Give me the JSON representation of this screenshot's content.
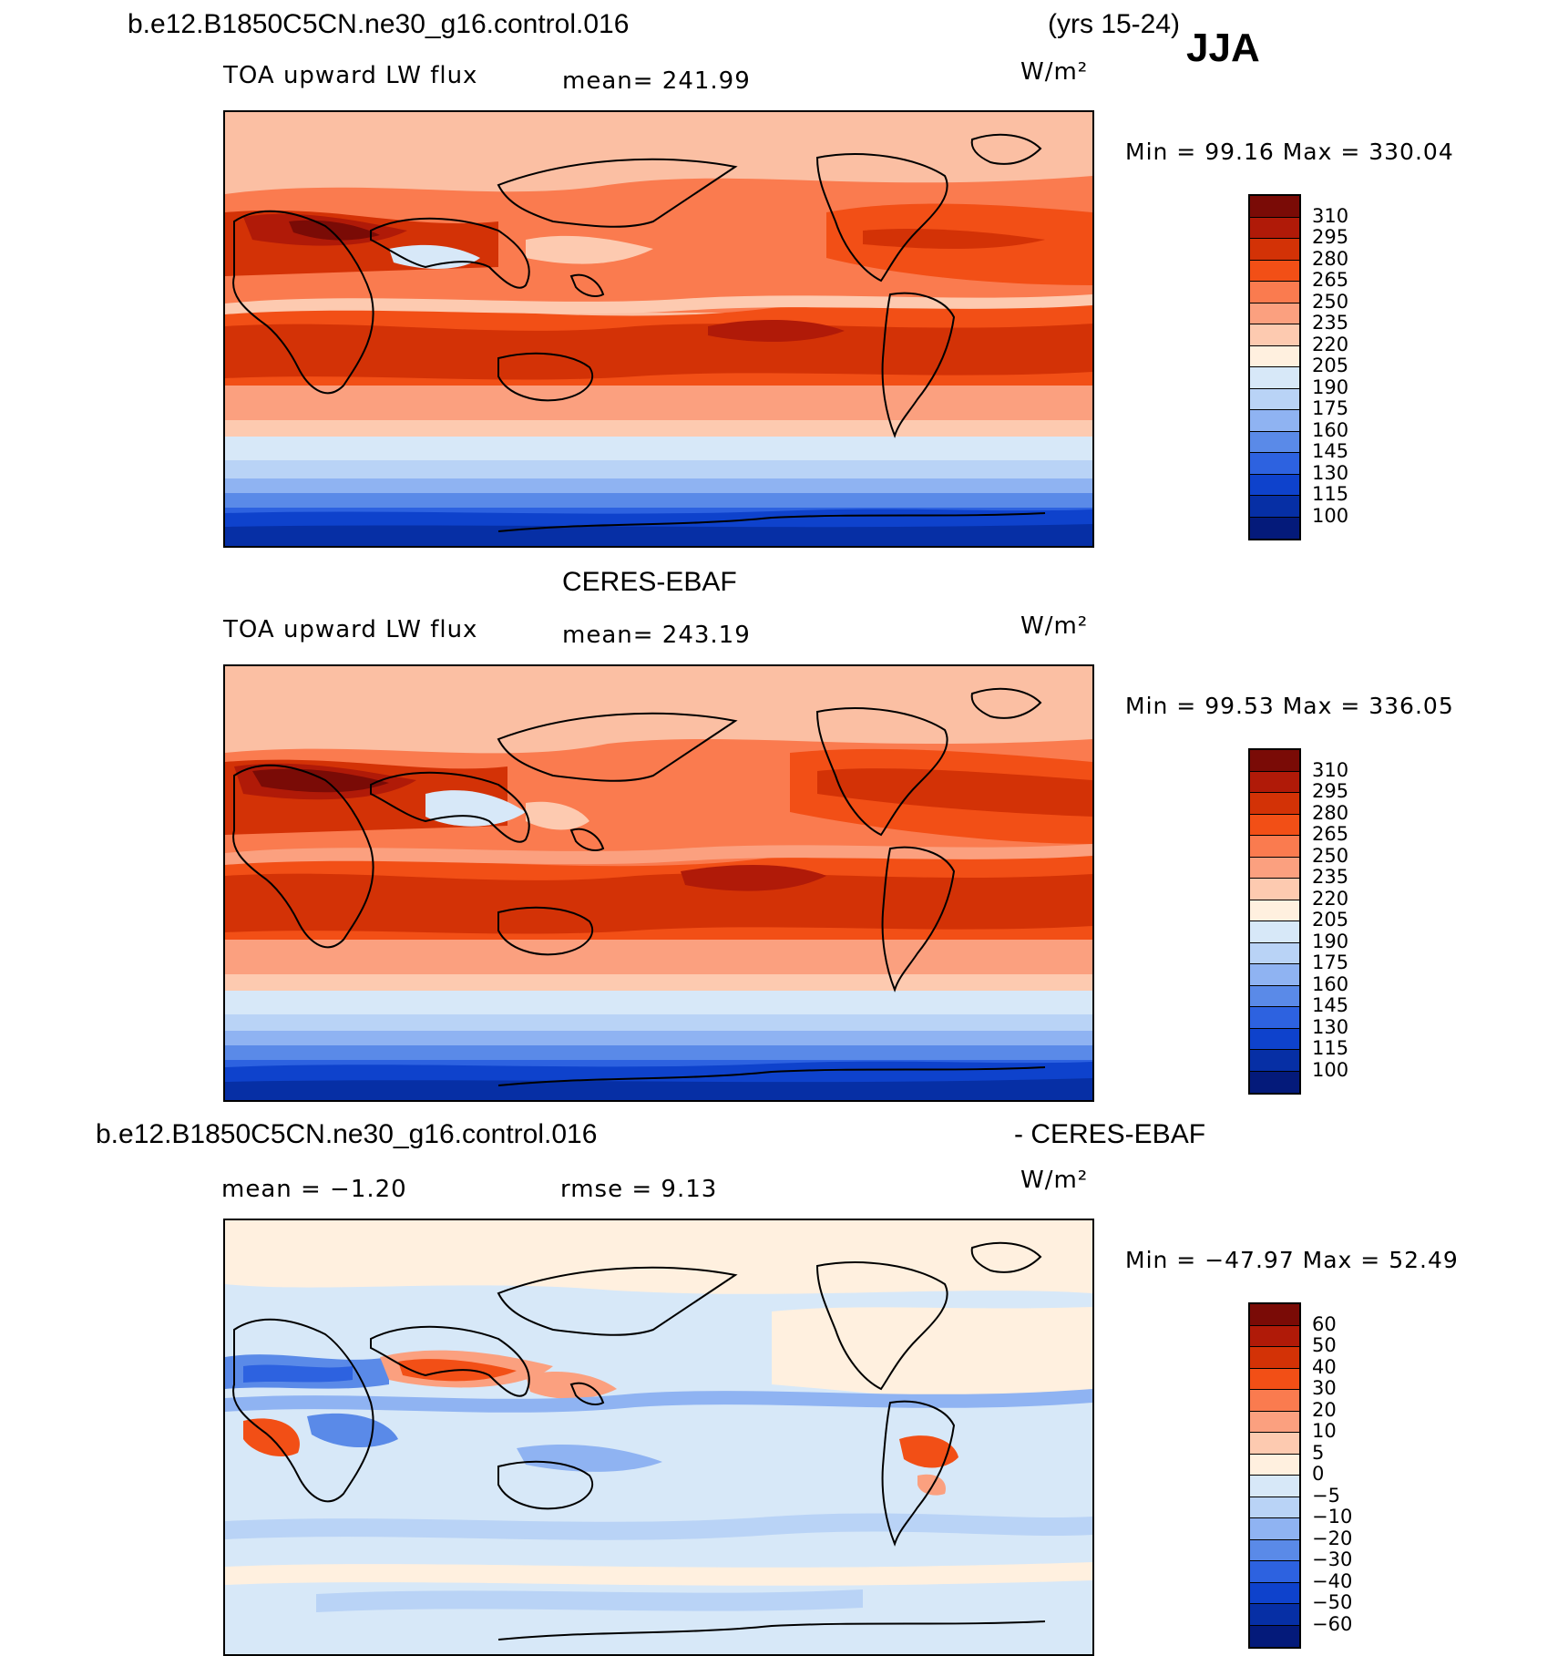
{
  "header": {
    "case": "b.e12.B1850C5CN.ne30_g16.control.016",
    "years": "(yrs 15-24)",
    "season": "JJA"
  },
  "panels": [
    {
      "title": "",
      "variable": "TOA upward LW flux",
      "mean": "mean=  241.99",
      "units": "W/m²",
      "minmax": "Min  =   99.16  Max  =  330.04"
    },
    {
      "title": "CERES-EBAF",
      "variable": "TOA upward LW flux",
      "mean": "mean=  243.19",
      "units": "W/m²",
      "minmax": "Min  =   99.53  Max  =  336.05"
    },
    {
      "title_left": "b.e12.B1850C5CN.ne30_g16.control.016",
      "title_right": "- CERES-EBAF",
      "mean": "mean  =   −1.20",
      "rmse": "rmse  =     9.13",
      "units": "W/m²",
      "minmax": "Min  = −47.97  Max  =    52.49"
    }
  ],
  "colorbars": {
    "abs_levels": [
      "310",
      "295",
      "280",
      "265",
      "250",
      "235",
      "220",
      "205",
      "190",
      "175",
      "160",
      "145",
      "130",
      "115",
      "100"
    ],
    "abs_colors": [
      "#7a0b06",
      "#b01a08",
      "#d33206",
      "#f24f16",
      "#fa7b4f",
      "#fba07f",
      "#fdcab0",
      "#fff0df",
      "#d7e8f8",
      "#b9d3f6",
      "#8fb3f2",
      "#5a8ae8",
      "#2d62e0",
      "#0e42cc",
      "#062fa5",
      "#041a7a"
    ],
    "diff_levels": [
      "60",
      "50",
      "40",
      "30",
      "20",
      "10",
      "5",
      "0",
      "−5",
      "−10",
      "−20",
      "−30",
      "−40",
      "−50",
      "−60"
    ],
    "diff_colors": [
      "#7a0b06",
      "#b01a08",
      "#d33206",
      "#f24f16",
      "#fa7b4f",
      "#fba07f",
      "#fdcab0",
      "#fff0df",
      "#d7e8f8",
      "#b9d3f6",
      "#8fb3f2",
      "#5a8ae8",
      "#2d62e0",
      "#0e42cc",
      "#062fa5",
      "#041a7a"
    ]
  }
}
